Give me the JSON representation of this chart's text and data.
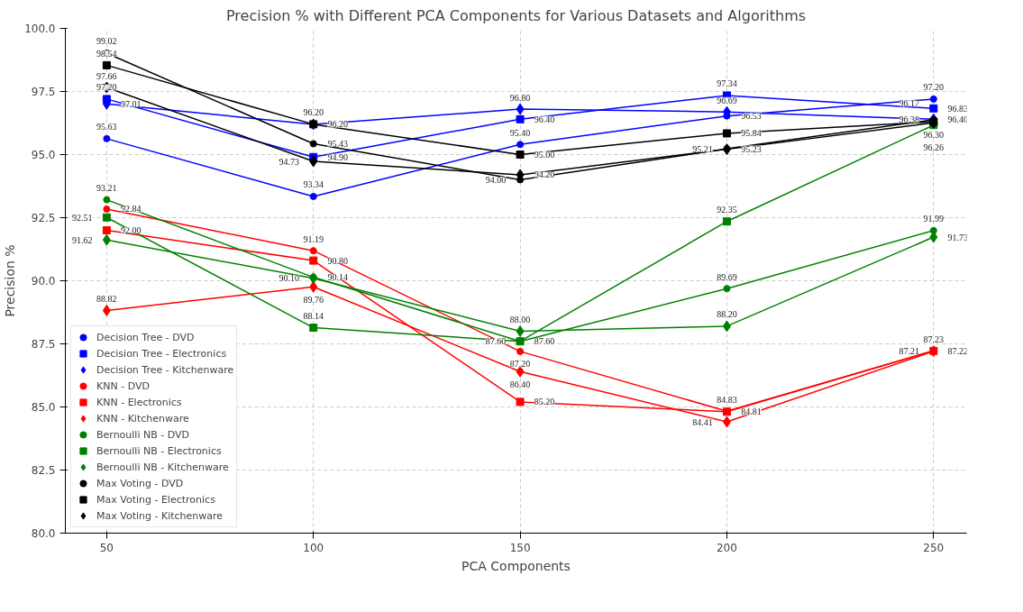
{
  "chart_data": {
    "type": "line",
    "title": "Precision % with Different PCA Components for Various Datasets and Algorithms",
    "xlabel": "PCA Components",
    "ylabel": "Precision %",
    "x": [
      50,
      100,
      150,
      200,
      250
    ],
    "xlim": [
      40,
      258
    ],
    "xticks": [
      50,
      100,
      150,
      200,
      250
    ],
    "ylim": [
      80,
      100
    ],
    "yticks": [
      {
        "value": 80,
        "label": "80.0"
      },
      {
        "value": 82.5,
        "label": "82.5"
      },
      {
        "value": 85,
        "label": "85.0"
      },
      {
        "value": 87.5,
        "label": "87.5"
      },
      {
        "value": 90,
        "label": "90.0"
      },
      {
        "value": 92.5,
        "label": "92.5"
      },
      {
        "value": 95,
        "label": "95.0"
      },
      {
        "value": 97.5,
        "label": "97.5"
      },
      {
        "value": 100,
        "label": "100.0"
      }
    ],
    "grid": true,
    "legend": "bottom left",
    "line_style": "solid",
    "series": [
      {
        "name": "Decision Tree - DVD",
        "color": "#0000ff",
        "marker": "circle",
        "values": [
          95.63,
          93.34,
          95.4,
          96.53,
          97.2
        ],
        "value_labels": [
          "95.63",
          "93.34",
          "95.40",
          "96.53",
          "97.20"
        ]
      },
      {
        "name": "Decision Tree - Electronics",
        "color": "#0000ff",
        "marker": "square",
        "values": [
          97.2,
          94.9,
          96.4,
          97.34,
          96.83
        ],
        "value_labels": [
          "97.20",
          "94.90",
          "96.40",
          "97.34",
          "96.83"
        ]
      },
      {
        "name": "Decision Tree - Kitchenware",
        "color": "#0000ff",
        "marker": "diamond",
        "values": [
          97.01,
          96.2,
          96.8,
          96.69,
          96.4
        ],
        "value_labels": [
          "97.01",
          "96.20",
          "96.80",
          "96.69",
          "96.40"
        ]
      },
      {
        "name": "KNN - DVD",
        "color": "#ff0000",
        "marker": "circle",
        "values": [
          92.84,
          91.19,
          87.2,
          84.83,
          87.23
        ],
        "value_labels": [
          "92.84",
          "91.19",
          "87.20",
          "84.83",
          "87.23"
        ]
      },
      {
        "name": "KNN - Electronics",
        "color": "#ff0000",
        "marker": "square",
        "values": [
          92.0,
          90.8,
          85.2,
          84.81,
          87.22
        ],
        "value_labels": [
          "92.00",
          "90.80",
          "85.20",
          "84.81",
          "87.22"
        ]
      },
      {
        "name": "KNN - Kitchenware",
        "color": "#ff0000",
        "marker": "diamond",
        "values": [
          88.82,
          89.76,
          86.4,
          84.41,
          87.21
        ],
        "value_labels": [
          "88.82",
          "89.76",
          "86.40",
          "84.41",
          "87.21"
        ]
      },
      {
        "name": "Bernoulli NB - DVD",
        "color": "#008000",
        "marker": "circle",
        "values": [
          93.21,
          90.14,
          87.6,
          89.69,
          91.99
        ],
        "value_labels": [
          "93.21",
          "90.14",
          "87.60",
          "89.69",
          "91.99"
        ]
      },
      {
        "name": "Bernoulli NB - Electronics",
        "color": "#008000",
        "marker": "square",
        "values": [
          92.51,
          88.14,
          87.6,
          92.35,
          96.17
        ],
        "value_labels": [
          "92.51",
          "88.14",
          "87.60",
          "92.35",
          "96.17"
        ]
      },
      {
        "name": "Bernoulli NB - Kitchenware",
        "color": "#008000",
        "marker": "diamond",
        "values": [
          91.62,
          90.1,
          88.0,
          88.2,
          91.73
        ],
        "value_labels": [
          "91.62",
          "90.10",
          "88.00",
          "88.20",
          "91.73"
        ]
      },
      {
        "name": "Max Voting - DVD",
        "color": "#000000",
        "marker": "circle",
        "values": [
          99.02,
          95.43,
          94.0,
          95.23,
          96.38
        ],
        "value_labels": [
          "99.02",
          "95.43",
          "94.00",
          "95.23",
          "96.38"
        ]
      },
      {
        "name": "Max Voting - Electronics",
        "color": "#000000",
        "marker": "square",
        "values": [
          98.54,
          96.2,
          95.0,
          95.84,
          96.3
        ],
        "value_labels": [
          "98.54",
          "96.20",
          "95.00",
          "95.84",
          "96.30"
        ]
      },
      {
        "name": "Max Voting - Kitchenware",
        "color": "#000000",
        "marker": "diamond",
        "values": [
          97.66,
          94.73,
          94.2,
          95.21,
          96.26
        ],
        "value_labels": [
          "97.66",
          "94.73",
          "94.20",
          "95.21",
          "96.26"
        ]
      }
    ]
  }
}
